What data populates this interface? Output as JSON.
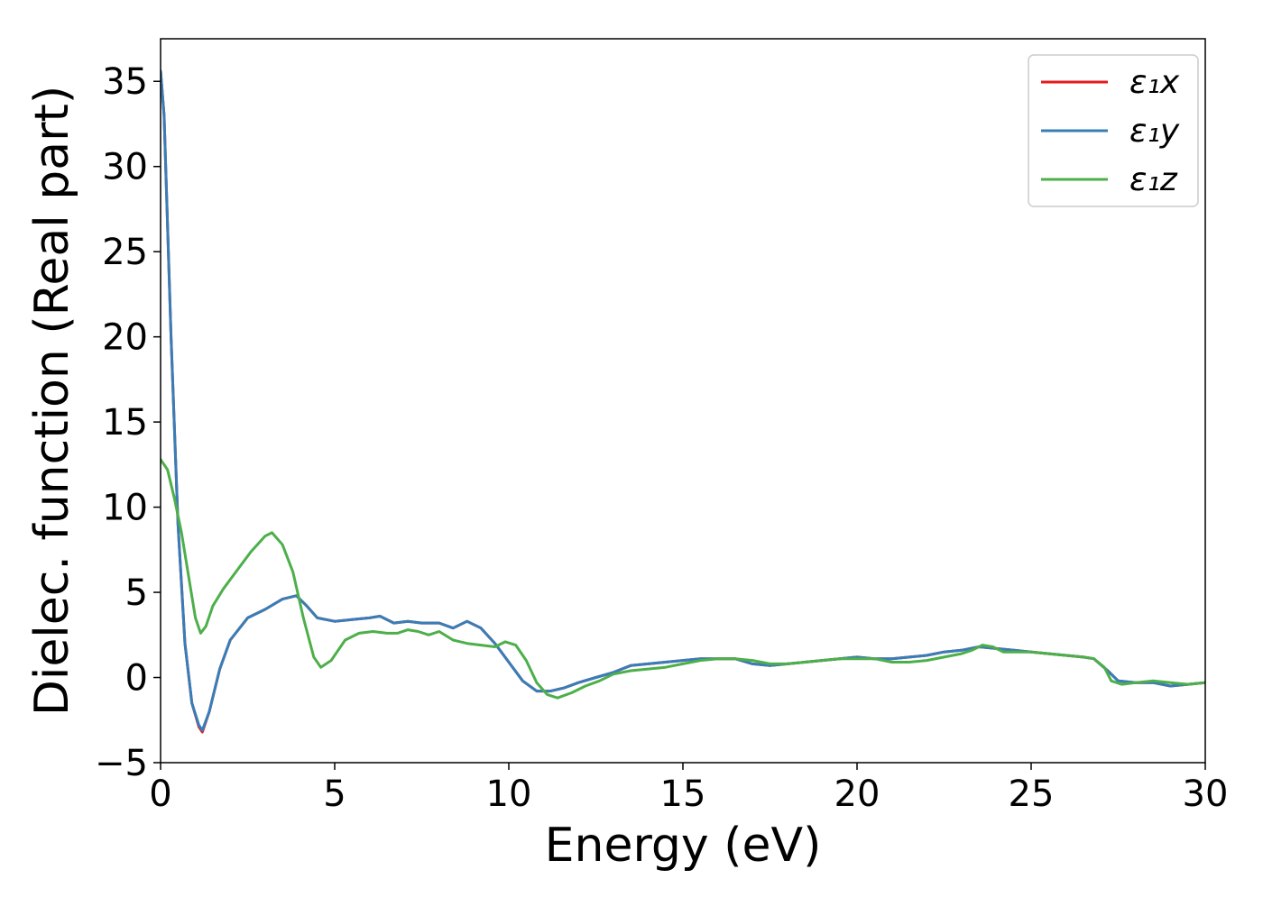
{
  "chart_data": {
    "type": "line",
    "title": "",
    "xlabel": "Energy (eV)",
    "ylabel": "Dielec. function (Real part)",
    "xlim": [
      0,
      30
    ],
    "ylim": [
      -5,
      37.5
    ],
    "xticks": [
      0,
      5,
      10,
      15,
      20,
      25,
      30
    ],
    "yticks": [
      -5,
      0,
      5,
      10,
      15,
      20,
      25,
      30,
      35
    ],
    "xtick_labels": [
      "0",
      "5",
      "10",
      "15",
      "20",
      "25",
      "30"
    ],
    "ytick_labels": [
      "−5",
      "0",
      "5",
      "10",
      "15",
      "20",
      "25",
      "30",
      "35"
    ],
    "grid": false,
    "legend_position": "top-right",
    "series": [
      {
        "name": "ε₁x",
        "color": "#e41a1c",
        "x": [
          0,
          0.1,
          0.3,
          0.5,
          0.7,
          0.9,
          1.1,
          1.2,
          1.4,
          1.7,
          2,
          2.5,
          3,
          3.5,
          3.9,
          4.2,
          4.5,
          5,
          5.5,
          6,
          6.3,
          6.7,
          7.1,
          7.5,
          8,
          8.4,
          8.8,
          9.2,
          9.6,
          10,
          10.4,
          10.8,
          11.2,
          11.6,
          12,
          12.5,
          13,
          13.5,
          14,
          14.5,
          15,
          15.5,
          16,
          16.5,
          17,
          17.5,
          18,
          18.5,
          19,
          19.5,
          20,
          20.5,
          21,
          21.5,
          22,
          22.5,
          23,
          23.5,
          24,
          24.5,
          25,
          25.5,
          26,
          26.5,
          26.8,
          27.2,
          27.5,
          28,
          28.5,
          29,
          29.5,
          30
        ],
        "y": [
          35.6,
          33,
          20,
          9,
          2,
          -1.5,
          -2.9,
          -3.2,
          -2,
          0.5,
          2.2,
          3.5,
          4,
          4.6,
          4.8,
          4.2,
          3.5,
          3.3,
          3.4,
          3.5,
          3.6,
          3.2,
          3.3,
          3.2,
          3.2,
          2.9,
          3.3,
          2.9,
          2,
          0.9,
          -0.2,
          -0.8,
          -0.8,
          -0.6,
          -0.3,
          0,
          0.3,
          0.7,
          0.8,
          0.9,
          1,
          1.1,
          1.1,
          1.1,
          0.8,
          0.7,
          0.8,
          0.9,
          1,
          1.1,
          1.2,
          1.1,
          1.1,
          1.2,
          1.3,
          1.5,
          1.6,
          1.8,
          1.7,
          1.6,
          1.5,
          1.4,
          1.3,
          1.2,
          1.1,
          0.4,
          -0.2,
          -0.3,
          -0.3,
          -0.5,
          -0.4,
          -0.3
        ]
      },
      {
        "name": "ε₁y",
        "color": "#377eb8",
        "x": [
          0,
          0.1,
          0.3,
          0.5,
          0.7,
          0.9,
          1.1,
          1.2,
          1.4,
          1.7,
          2,
          2.5,
          3,
          3.5,
          3.9,
          4.2,
          4.5,
          5,
          5.5,
          6,
          6.3,
          6.7,
          7.1,
          7.5,
          8,
          8.4,
          8.8,
          9.2,
          9.6,
          10,
          10.4,
          10.8,
          11.2,
          11.6,
          12,
          12.5,
          13,
          13.5,
          14,
          14.5,
          15,
          15.5,
          16,
          16.5,
          17,
          17.5,
          18,
          18.5,
          19,
          19.5,
          20,
          20.5,
          21,
          21.5,
          22,
          22.5,
          23,
          23.5,
          24,
          24.5,
          25,
          25.5,
          26,
          26.5,
          26.8,
          27.2,
          27.5,
          28,
          28.5,
          29,
          29.5,
          30
        ],
        "y": [
          35.6,
          33,
          20,
          9,
          2,
          -1.5,
          -2.8,
          -3.1,
          -2,
          0.5,
          2.2,
          3.5,
          4,
          4.6,
          4.8,
          4.2,
          3.5,
          3.3,
          3.4,
          3.5,
          3.6,
          3.2,
          3.3,
          3.2,
          3.2,
          2.9,
          3.3,
          2.9,
          2,
          0.9,
          -0.2,
          -0.8,
          -0.8,
          -0.6,
          -0.3,
          0,
          0.3,
          0.7,
          0.8,
          0.9,
          1,
          1.1,
          1.1,
          1.1,
          0.8,
          0.7,
          0.8,
          0.9,
          1,
          1.1,
          1.2,
          1.1,
          1.1,
          1.2,
          1.3,
          1.5,
          1.6,
          1.8,
          1.7,
          1.6,
          1.5,
          1.4,
          1.3,
          1.2,
          1.1,
          0.4,
          -0.2,
          -0.3,
          -0.3,
          -0.5,
          -0.4,
          -0.3
        ]
      },
      {
        "name": "ε₁z",
        "color": "#4daf4a",
        "x": [
          0,
          0.2,
          0.4,
          0.6,
          0.8,
          1,
          1.15,
          1.3,
          1.5,
          1.8,
          2.2,
          2.6,
          3,
          3.2,
          3.5,
          3.8,
          4.1,
          4.4,
          4.6,
          4.9,
          5.3,
          5.7,
          6.1,
          6.5,
          6.8,
          7.1,
          7.4,
          7.7,
          8,
          8.4,
          8.8,
          9.2,
          9.6,
          9.9,
          10.2,
          10.5,
          10.8,
          11.1,
          11.4,
          11.8,
          12.2,
          12.6,
          13,
          13.5,
          14,
          14.5,
          15,
          15.5,
          16,
          16.5,
          17,
          17.5,
          18,
          18.5,
          19,
          19.5,
          20,
          20.5,
          21,
          21.5,
          22,
          22.5,
          23,
          23.3,
          23.6,
          23.9,
          24.2,
          24.6,
          25,
          25.5,
          26,
          26.5,
          26.8,
          27.1,
          27.3,
          27.6,
          28,
          28.5,
          29,
          29.5,
          30
        ],
        "y": [
          12.8,
          12.2,
          10.5,
          8.5,
          6,
          3.5,
          2.6,
          3,
          4.2,
          5.2,
          6.3,
          7.4,
          8.3,
          8.5,
          7.8,
          6.2,
          3.5,
          1.2,
          0.6,
          1,
          2.2,
          2.6,
          2.7,
          2.6,
          2.6,
          2.8,
          2.7,
          2.5,
          2.7,
          2.2,
          2,
          1.9,
          1.8,
          2.1,
          1.9,
          1,
          -0.3,
          -1,
          -1.2,
          -0.9,
          -0.5,
          -0.2,
          0.2,
          0.4,
          0.5,
          0.6,
          0.8,
          1,
          1.1,
          1.1,
          1,
          0.8,
          0.8,
          0.9,
          1,
          1.1,
          1.1,
          1.1,
          0.9,
          0.9,
          1,
          1.2,
          1.4,
          1.6,
          1.9,
          1.8,
          1.5,
          1.5,
          1.5,
          1.4,
          1.3,
          1.2,
          1.1,
          0.6,
          -0.2,
          -0.4,
          -0.3,
          -0.2,
          -0.3,
          -0.4,
          -0.3
        ]
      }
    ]
  }
}
